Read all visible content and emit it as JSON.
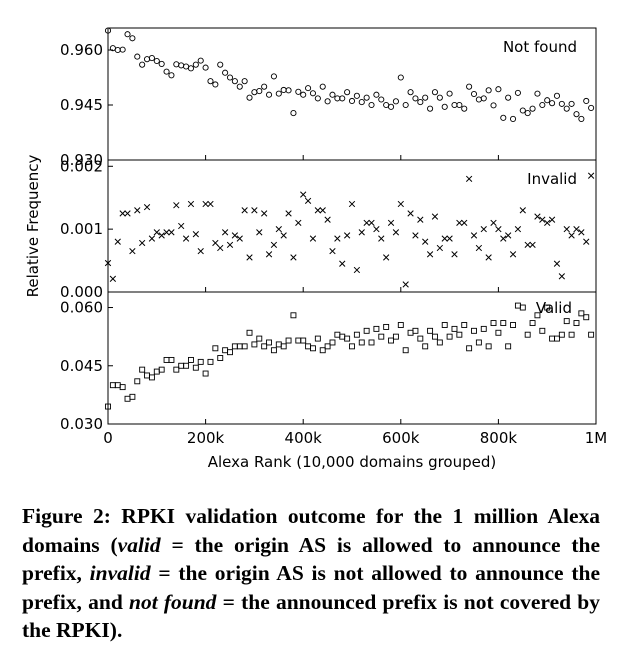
{
  "caption": {
    "label": "Figure 2:",
    "text_1": "RPKI validation outcome for the 1 million Alexa domains (",
    "valid_term": "valid",
    "text_2": " = the origin AS is allowed to announce the prefix, ",
    "invalid_term": "invalid",
    "text_3": " = the origin AS is not allowed to announce the prefix, and ",
    "notfound_term": "not found",
    "text_4": " = the announced prefix is not covered by the RPKI)."
  },
  "chart_data": {
    "type": "scatter",
    "xlabel": "Alexa Rank (10,000 domains grouped)",
    "ylabel": "Relative Frequency",
    "xlim": [
      0,
      1000000
    ],
    "x_ticks": [
      0,
      200000,
      400000,
      600000,
      800000,
      1000000
    ],
    "x_tick_labels": [
      "0",
      "200k",
      "400k",
      "600k",
      "800k",
      "1M"
    ],
    "x": [
      0,
      10000,
      20000,
      30000,
      40000,
      50000,
      60000,
      70000,
      80000,
      90000,
      100000,
      110000,
      120000,
      130000,
      140000,
      150000,
      160000,
      170000,
      180000,
      190000,
      200000,
      210000,
      220000,
      230000,
      240000,
      250000,
      260000,
      270000,
      280000,
      290000,
      300000,
      310000,
      320000,
      330000,
      340000,
      350000,
      360000,
      370000,
      380000,
      390000,
      400000,
      410000,
      420000,
      430000,
      440000,
      450000,
      460000,
      470000,
      480000,
      490000,
      500000,
      510000,
      520000,
      530000,
      540000,
      550000,
      560000,
      570000,
      580000,
      590000,
      600000,
      610000,
      620000,
      630000,
      640000,
      650000,
      660000,
      670000,
      680000,
      690000,
      700000,
      710000,
      720000,
      730000,
      740000,
      750000,
      760000,
      770000,
      780000,
      790000,
      800000,
      810000,
      820000,
      830000,
      840000,
      850000,
      860000,
      870000,
      880000,
      890000,
      900000,
      910000,
      920000,
      930000,
      940000,
      950000,
      960000,
      970000,
      980000,
      990000
    ],
    "panels": [
      {
        "name": "Not found",
        "marker": "circle",
        "ylim": [
          0.93,
          0.966
        ],
        "y_ticks": [
          0.93,
          0.945,
          0.96
        ],
        "y_tick_labels": [
          "0.930",
          "0.945",
          "0.960"
        ],
        "values": [
          0.9653,
          0.9605,
          0.96,
          0.9601,
          0.9643,
          0.9632,
          0.9582,
          0.956,
          0.9575,
          0.9578,
          0.957,
          0.9562,
          0.9541,
          0.9531,
          0.9561,
          0.9558,
          0.9555,
          0.955,
          0.956,
          0.9571,
          0.9552,
          0.9515,
          0.9506,
          0.956,
          0.9538,
          0.9525,
          0.9515,
          0.95,
          0.9515,
          0.947,
          0.9485,
          0.9488,
          0.95,
          0.9478,
          0.9528,
          0.9481,
          0.9491,
          0.949,
          0.9428,
          0.9486,
          0.9478,
          0.9496,
          0.9482,
          0.9468,
          0.95,
          0.946,
          0.9478,
          0.9468,
          0.9468,
          0.9485,
          0.9461,
          0.9475,
          0.9458,
          0.947,
          0.945,
          0.9478,
          0.9465,
          0.945,
          0.9445,
          0.946,
          0.9525,
          0.945,
          0.9485,
          0.9468,
          0.9458,
          0.947,
          0.944,
          0.9485,
          0.947,
          0.9445,
          0.9481,
          0.945,
          0.945,
          0.944,
          0.95,
          0.948,
          0.9465,
          0.9468,
          0.949,
          0.9449,
          0.9493,
          0.9415,
          0.947,
          0.9412,
          0.9483,
          0.9435,
          0.9428,
          0.944,
          0.9481,
          0.945,
          0.9463,
          0.9455,
          0.9475,
          0.9453,
          0.944,
          0.9453,
          0.9425,
          0.9412,
          0.9461,
          0.9442
        ]
      },
      {
        "name": "Invalid",
        "marker": "x",
        "ylim": [
          0.0,
          0.0021
        ],
        "y_ticks": [
          0.0,
          0.001,
          0.002
        ],
        "y_tick_labels": [
          "0.000",
          "0.001",
          "0.002"
        ],
        "values": [
          0.00046,
          0.00021,
          0.0008,
          0.00125,
          0.00125,
          0.00065,
          0.0013,
          0.00078,
          0.00135,
          0.00085,
          0.00095,
          0.0009,
          0.00095,
          0.00095,
          0.00138,
          0.00105,
          0.00085,
          0.0014,
          0.00092,
          0.00065,
          0.0014,
          0.0014,
          0.00078,
          0.0007,
          0.00095,
          0.00075,
          0.0009,
          0.00085,
          0.0013,
          0.00055,
          0.0013,
          0.00095,
          0.00125,
          0.0006,
          0.00075,
          0.001,
          0.0009,
          0.00125,
          0.00055,
          0.0011,
          0.00155,
          0.00145,
          0.00085,
          0.0013,
          0.0013,
          0.00115,
          0.00065,
          0.00085,
          0.00045,
          0.0009,
          0.0014,
          0.00035,
          0.00095,
          0.0011,
          0.0011,
          0.001,
          0.00085,
          0.00055,
          0.0011,
          0.00095,
          0.0014,
          0.00012,
          0.00125,
          0.0009,
          0.00115,
          0.0008,
          0.0006,
          0.0012,
          0.0007,
          0.00085,
          0.00085,
          0.0006,
          0.0011,
          0.0011,
          0.0018,
          0.0009,
          0.0007,
          0.001,
          0.00055,
          0.0011,
          0.001,
          0.00085,
          0.0009,
          0.0006,
          0.001,
          0.0013,
          0.00075,
          0.00075,
          0.0012,
          0.00115,
          0.0011,
          0.00115,
          0.00045,
          0.00025,
          0.001,
          0.0009,
          0.001,
          0.00095,
          0.0008,
          0.00185
        ]
      },
      {
        "name": "Valid",
        "marker": "square",
        "ylim": [
          0.03,
          0.064
        ],
        "y_ticks": [
          0.03,
          0.045,
          0.06
        ],
        "y_tick_labels": [
          "0.030",
          "0.045",
          "0.060"
        ],
        "values": [
          0.0345,
          0.04,
          0.04,
          0.0395,
          0.0365,
          0.037,
          0.041,
          0.044,
          0.0425,
          0.042,
          0.0435,
          0.044,
          0.0465,
          0.0465,
          0.044,
          0.045,
          0.045,
          0.0465,
          0.0445,
          0.046,
          0.043,
          0.046,
          0.0495,
          0.047,
          0.049,
          0.0485,
          0.05,
          0.05,
          0.05,
          0.0535,
          0.0505,
          0.052,
          0.05,
          0.051,
          0.049,
          0.0505,
          0.05,
          0.0515,
          0.058,
          0.0515,
          0.0515,
          0.05,
          0.0495,
          0.052,
          0.049,
          0.05,
          0.051,
          0.053,
          0.0525,
          0.052,
          0.05,
          0.053,
          0.051,
          0.054,
          0.051,
          0.0545,
          0.0525,
          0.055,
          0.0515,
          0.0525,
          0.0555,
          0.049,
          0.0535,
          0.054,
          0.052,
          0.05,
          0.054,
          0.0525,
          0.051,
          0.0555,
          0.0525,
          0.0545,
          0.053,
          0.0555,
          0.0495,
          0.054,
          0.051,
          0.0545,
          0.05,
          0.056,
          0.0535,
          0.056,
          0.05,
          0.0555,
          0.0605,
          0.06,
          0.053,
          0.056,
          0.058,
          0.054,
          0.06,
          0.052,
          0.052,
          0.053,
          0.0565,
          0.053,
          0.056,
          0.0585,
          0.0575,
          0.053
        ]
      }
    ]
  }
}
